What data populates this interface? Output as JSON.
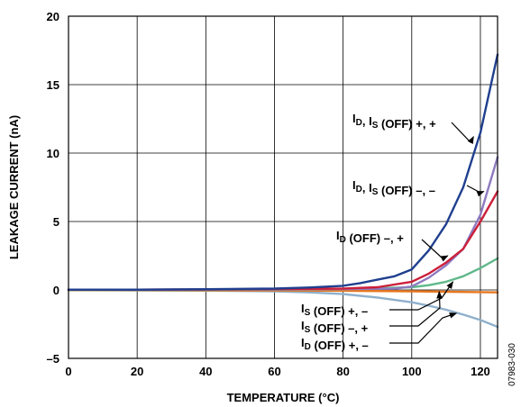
{
  "chart_data": {
    "type": "line",
    "xlabel": "TEMPERATURE (°C)",
    "ylabel": "LEAKAGE CURRENT (nA)",
    "xlim": [
      0,
      125
    ],
    "ylim": [
      -5,
      20
    ],
    "xticks": [
      0,
      20,
      40,
      60,
      80,
      100,
      120
    ],
    "xtick_labels": [
      "0",
      "20",
      "40",
      "60",
      "80",
      "100",
      "120"
    ],
    "yticks": [
      -5,
      0,
      5,
      10,
      15,
      20
    ],
    "ytick_labels": [
      "–5",
      "0",
      "5",
      "10",
      "15",
      "20"
    ],
    "grid": true,
    "legend": "none (callout labels with arrows)",
    "figure_id": "07983-030",
    "series": [
      {
        "label_main": "I",
        "label_sub1": "D",
        "label_mid": ", I",
        "label_sub2": "S",
        "label_tail": " (OFF) +, +",
        "color": "#1f3f8f",
        "x": [
          0,
          20,
          40,
          60,
          70,
          80,
          85,
          90,
          95,
          100,
          105,
          110,
          115,
          120,
          125
        ],
        "y": [
          0.02,
          0.02,
          0.05,
          0.1,
          0.18,
          0.3,
          0.5,
          0.75,
          1.0,
          1.5,
          2.9,
          4.8,
          7.5,
          11.5,
          17.2
        ]
      },
      {
        "label_main": "I",
        "label_sub1": "D",
        "label_mid": ", I",
        "label_sub2": "S",
        "label_tail": " (OFF) –, –",
        "color": "#8e7bc0",
        "x": [
          0,
          20,
          40,
          60,
          80,
          95,
          100,
          105,
          110,
          115,
          120,
          125
        ],
        "y": [
          0.02,
          0.02,
          0.03,
          0.04,
          0.06,
          0.1,
          0.25,
          0.9,
          1.8,
          3.0,
          5.5,
          9.7
        ]
      },
      {
        "label_main": "I",
        "label_sub1": "D",
        "label_mid": "",
        "label_sub2": "",
        "label_tail": " (OFF) –, +",
        "color": "#cc1f3a",
        "x": [
          0,
          20,
          40,
          60,
          80,
          90,
          100,
          105,
          110,
          115,
          120,
          125
        ],
        "y": [
          0.02,
          0.02,
          0.03,
          0.06,
          0.1,
          0.2,
          0.6,
          1.2,
          2.0,
          3.0,
          5.0,
          7.2
        ]
      },
      {
        "label_main": "I",
        "label_sub1": "S",
        "label_mid": "",
        "label_sub2": "",
        "label_tail": " (OFF) +, –",
        "color": "#5fb88a",
        "x": [
          0,
          20,
          40,
          60,
          80,
          100,
          105,
          110,
          115,
          120,
          125
        ],
        "y": [
          0.0,
          0.0,
          0.0,
          0.02,
          0.05,
          0.2,
          0.35,
          0.6,
          1.0,
          1.6,
          2.3
        ]
      },
      {
        "label_main": "I",
        "label_sub1": "S",
        "label_mid": "",
        "label_sub2": "",
        "label_tail": " (OFF) –, +",
        "color": "#e8771f",
        "x": [
          0,
          20,
          40,
          60,
          80,
          100,
          110,
          120,
          125
        ],
        "y": [
          -0.02,
          -0.02,
          -0.03,
          -0.04,
          -0.06,
          -0.1,
          -0.13,
          -0.16,
          -0.18
        ]
      },
      {
        "label_main": "I",
        "label_sub1": "D",
        "label_mid": "",
        "label_sub2": "",
        "label_tail": " (OFF) +, –",
        "color": "#8fb0cc",
        "x": [
          0,
          20,
          40,
          60,
          70,
          80,
          90,
          100,
          105,
          110,
          115,
          120,
          125
        ],
        "y": [
          -0.02,
          -0.03,
          -0.05,
          -0.1,
          -0.18,
          -0.3,
          -0.55,
          -0.9,
          -1.15,
          -1.45,
          -1.8,
          -2.2,
          -2.7
        ]
      }
    ]
  }
}
